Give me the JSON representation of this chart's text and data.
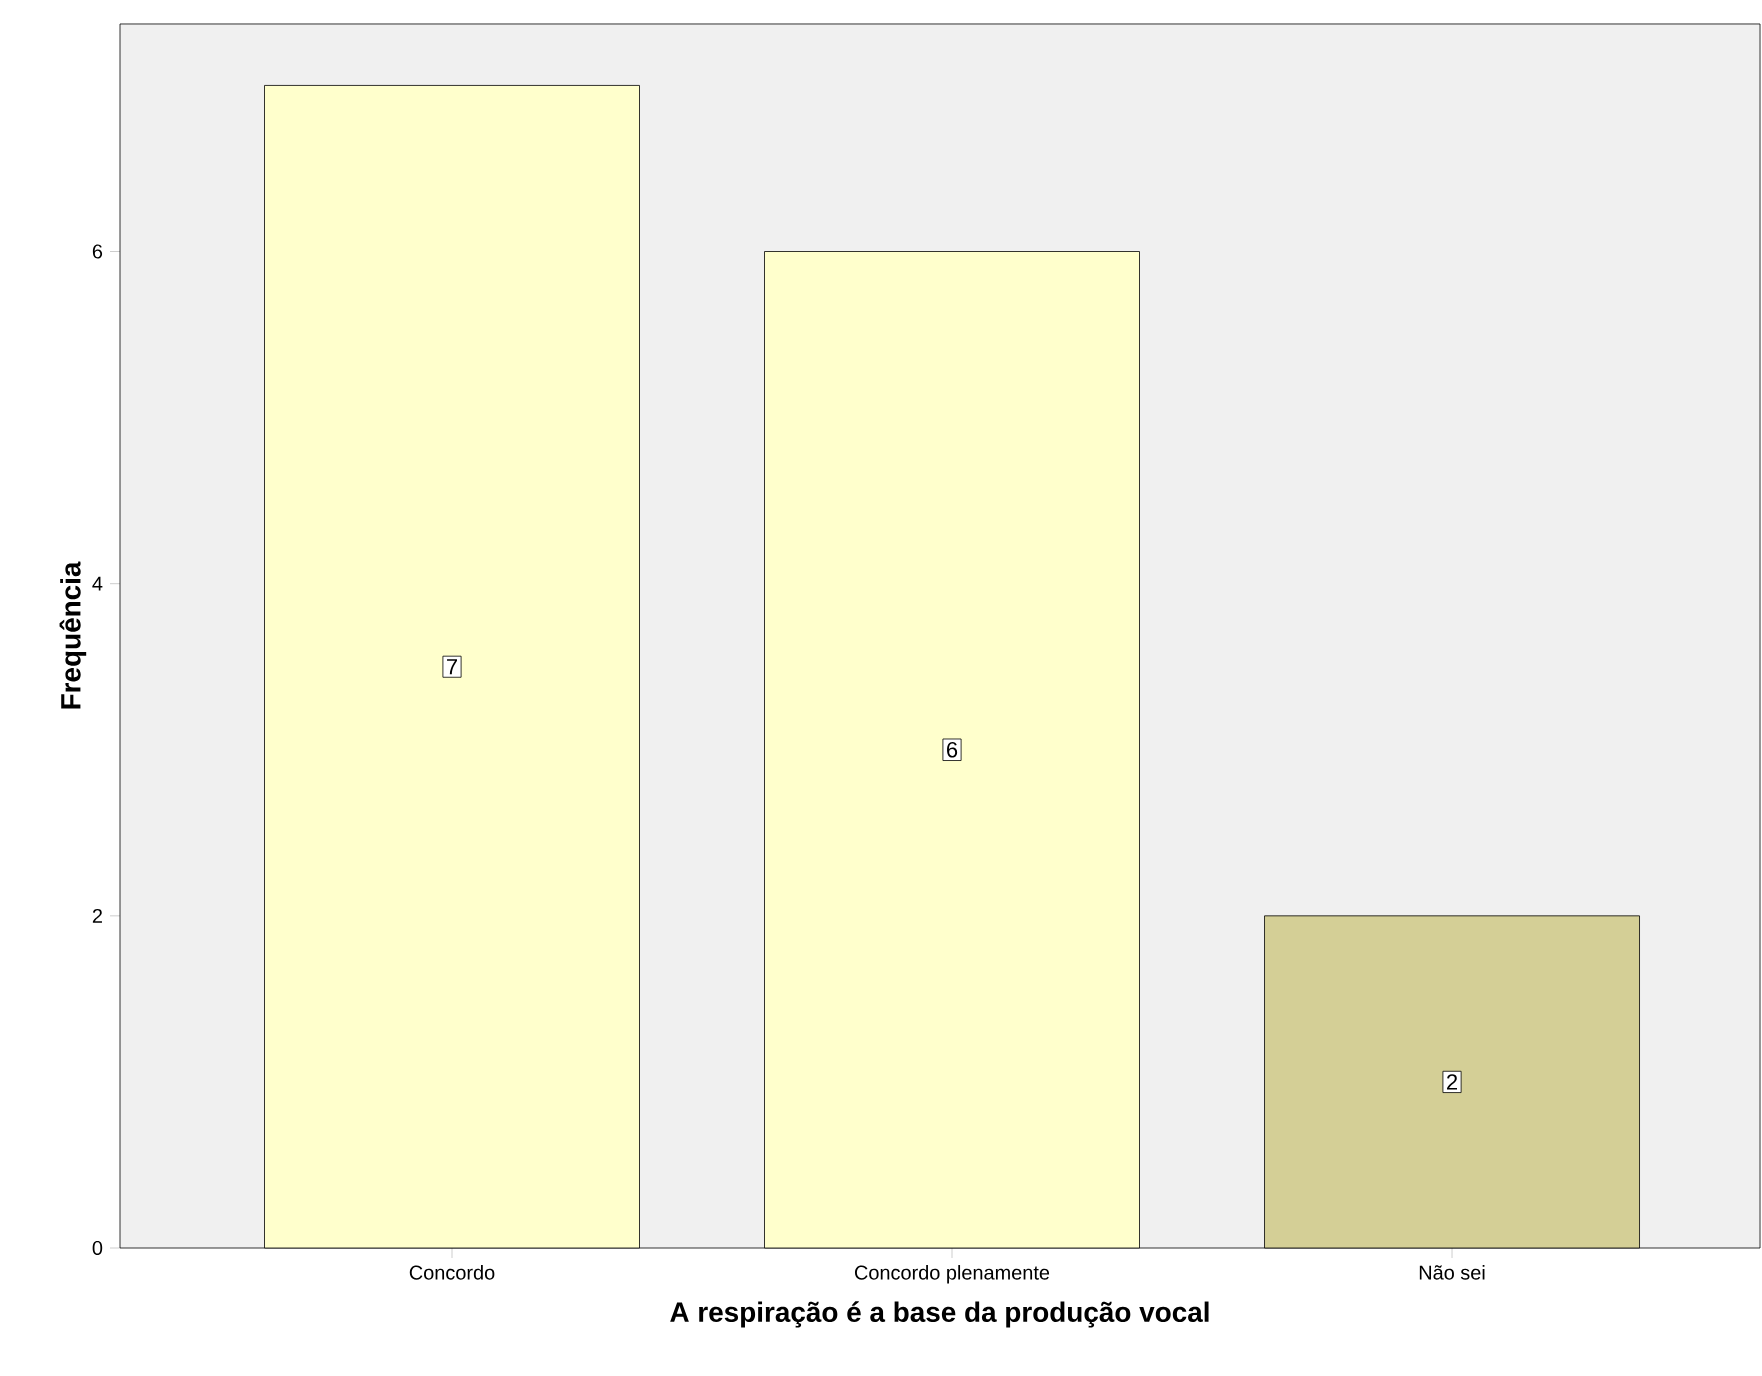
{
  "chart_data": {
    "type": "bar",
    "xlabel": "A respiração é a base da produção vocal",
    "ylabel": "Frequência",
    "categories": [
      "Concordo",
      "Concordo plenamente",
      "Não sei"
    ],
    "values": [
      7,
      6,
      2
    ],
    "colors": [
      "#ffffcc",
      "#ffffcc",
      "#d4cf96"
    ],
    "ylim": [
      0,
      7.37
    ],
    "yticks": [
      0,
      2,
      4,
      6
    ],
    "data_labels": true
  }
}
